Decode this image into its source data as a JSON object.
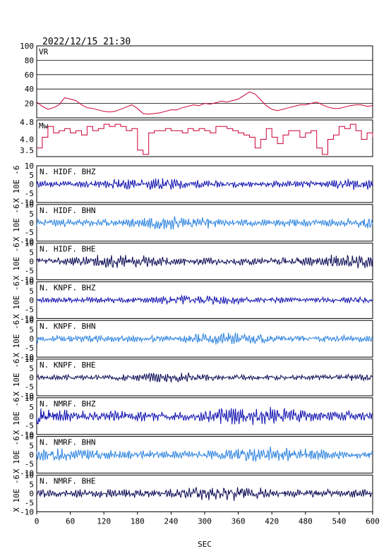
{
  "header": {
    "title": "2022/12/15 21:30"
  },
  "x_axis": {
    "label": "SEC",
    "range": [
      0,
      600
    ],
    "ticks": [
      "0",
      "60",
      "120",
      "180",
      "240",
      "300",
      "360",
      "420",
      "480",
      "540",
      "600"
    ]
  },
  "colors": {
    "background": "#ffffff",
    "frame": "#000000",
    "grid": "#000000",
    "vr_line": "#cc0033",
    "mw_line": "#cc0033",
    "bhz": "#1010b0",
    "bhn": "#2a82e0",
    "bhe": "#0a0a55"
  },
  "chart_data": [
    {
      "type": "line",
      "label": "VR",
      "ylim": [
        0,
        100
      ],
      "yticks": [
        "100",
        "80",
        "60",
        "40",
        "20"
      ],
      "grid": true,
      "x": [
        0,
        10,
        20,
        30,
        40,
        50,
        60,
        70,
        80,
        90,
        100,
        110,
        120,
        130,
        140,
        150,
        160,
        170,
        180,
        190,
        200,
        210,
        220,
        230,
        240,
        250,
        260,
        270,
        280,
        290,
        300,
        310,
        320,
        330,
        340,
        350,
        360,
        370,
        380,
        390,
        400,
        410,
        420,
        430,
        440,
        450,
        460,
        470,
        480,
        490,
        500,
        510,
        520,
        530,
        540,
        550,
        560,
        570,
        580,
        590,
        600
      ],
      "values": [
        22,
        16,
        12,
        14,
        18,
        28,
        26,
        24,
        18,
        14,
        13,
        11,
        9,
        8,
        9,
        12,
        15,
        18,
        13,
        6,
        5,
        6,
        7,
        9,
        11,
        11,
        14,
        16,
        18,
        17,
        20,
        19,
        21,
        23,
        22,
        24,
        26,
        31,
        36,
        33,
        25,
        17,
        12,
        10,
        12,
        14,
        16,
        18,
        18,
        20,
        22,
        18,
        15,
        13,
        13,
        15,
        17,
        18,
        18,
        16,
        17
      ]
    },
    {
      "type": "line",
      "label": "Mw",
      "ylim": [
        3.2,
        4.9
      ],
      "yticks": [
        "4.8",
        "4.0",
        "3.5"
      ],
      "grid": false,
      "x": [
        0,
        10,
        20,
        30,
        40,
        50,
        60,
        70,
        80,
        90,
        100,
        110,
        120,
        130,
        140,
        150,
        160,
        170,
        180,
        190,
        200,
        210,
        220,
        230,
        240,
        250,
        260,
        270,
        280,
        290,
        300,
        310,
        320,
        330,
        340,
        350,
        360,
        370,
        380,
        390,
        400,
        410,
        420,
        430,
        440,
        450,
        460,
        470,
        480,
        490,
        500,
        510,
        520,
        530,
        540,
        550,
        560,
        570,
        580,
        590,
        600
      ],
      "values": [
        3.6,
        4.1,
        4.6,
        4.3,
        4.4,
        4.5,
        4.3,
        4.4,
        4.2,
        4.6,
        4.4,
        4.5,
        4.7,
        4.6,
        4.7,
        4.6,
        4.4,
        4.5,
        3.5,
        3.3,
        4.3,
        4.4,
        4.4,
        4.5,
        4.4,
        4.4,
        4.3,
        4.5,
        4.4,
        4.5,
        4.4,
        4.3,
        4.6,
        4.6,
        4.5,
        4.4,
        4.3,
        4.2,
        4.1,
        3.6,
        4.0,
        4.5,
        4.1,
        3.8,
        4.2,
        4.4,
        4.4,
        4.1,
        4.3,
        4.4,
        3.6,
        3.3,
        4.0,
        4.2,
        4.6,
        4.5,
        4.7,
        4.4,
        4.0,
        4.3,
        4.1
      ]
    }
  ],
  "stations": [
    {
      "label": "N. HIDF. BHZ",
      "component": "bhz",
      "amp": 1.4,
      "seed": 11
    },
    {
      "label": "N. HIDF. BHN",
      "component": "bhn",
      "amp": 1.6,
      "seed": 23
    },
    {
      "label": "N. HIDF. BHE",
      "component": "bhe",
      "amp": 1.6,
      "seed": 37
    },
    {
      "label": "N. KNPF. BHZ",
      "component": "bhz",
      "amp": 1.2,
      "seed": 41
    },
    {
      "label": "N. KNPF. BHN",
      "component": "bhn",
      "amp": 1.4,
      "seed": 53
    },
    {
      "label": "N. KNPF. BHE",
      "component": "bhe",
      "amp": 1.1,
      "seed": 67
    },
    {
      "label": "N. NMRF. BHZ",
      "component": "bhz",
      "amp": 2.2,
      "seed": 71
    },
    {
      "label": "N. NMRF. BHN",
      "component": "bhn",
      "amp": 1.8,
      "seed": 83
    },
    {
      "label": "N. NMRF. BHE",
      "component": "bhe",
      "amp": 1.7,
      "seed": 97
    }
  ],
  "wave_axis": {
    "ylim": [
      -10,
      10
    ],
    "yticks": [
      "10",
      "5",
      "0",
      "-5",
      "-10"
    ],
    "ylabel": "X 10E -6"
  }
}
